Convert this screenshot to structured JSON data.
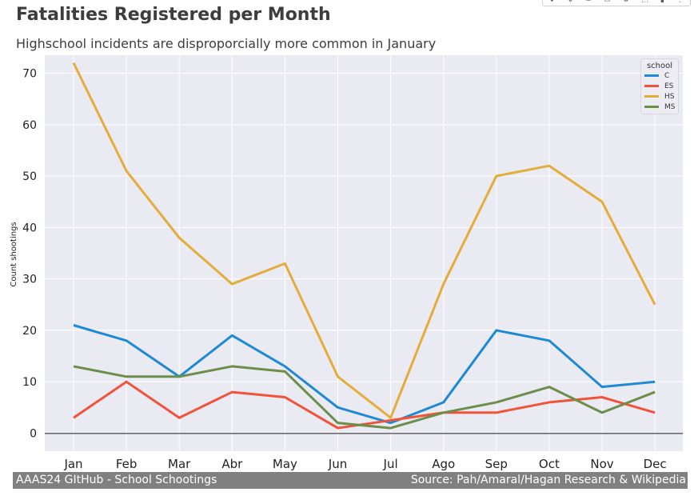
{
  "title": "Fatalities Registered per Month",
  "subtitle": "Highschool incidents are disproporcially more common in January",
  "footer": {
    "left": "AAAS24 GItHub -  School Schootings",
    "right": "Source: Pah/Amaral/Hagan Research & Wikipedia"
  },
  "toolbar_icons": [
    "pan-icon",
    "zoom-icon",
    "link-icon",
    "comment-icon",
    "settings-icon",
    "download-icon",
    "delete-icon",
    "more-icon"
  ],
  "chart_data": {
    "type": "line",
    "title": "Fatalities Registered per Month",
    "subtitle": "Highschool incidents are disproporcially more common in January",
    "xlabel": "",
    "ylabel": "Count shootings",
    "categories": [
      "Jan",
      "Feb",
      "Mar",
      "Abr",
      "May",
      "Jun",
      "Jul",
      "Ago",
      "Sep",
      "Oct",
      "Nov",
      "Dec"
    ],
    "yticks": [
      0,
      10,
      20,
      30,
      40,
      50,
      60,
      70
    ],
    "ylim": [
      -3.5,
      73.5
    ],
    "grid": true,
    "legend_title": "school",
    "legend_position": "top-right",
    "series": [
      {
        "name": "C",
        "color": "#1f8ad4",
        "values": [
          21,
          18,
          11,
          19,
          13,
          5,
          2,
          6,
          20,
          18,
          9,
          10
        ]
      },
      {
        "name": "ES",
        "color": "#f0533a",
        "values": [
          3,
          10,
          3,
          8,
          7,
          1,
          2.5,
          4,
          4,
          6,
          7,
          4
        ]
      },
      {
        "name": "HS",
        "color": "#e3ad3b",
        "values": [
          72,
          51,
          38,
          29,
          33,
          11,
          3,
          29,
          50,
          52,
          45,
          25
        ]
      },
      {
        "name": "MS",
        "color": "#6c8e4a",
        "values": [
          13,
          11,
          11,
          13,
          12,
          2,
          1,
          4,
          6,
          9,
          4,
          8
        ]
      }
    ]
  }
}
